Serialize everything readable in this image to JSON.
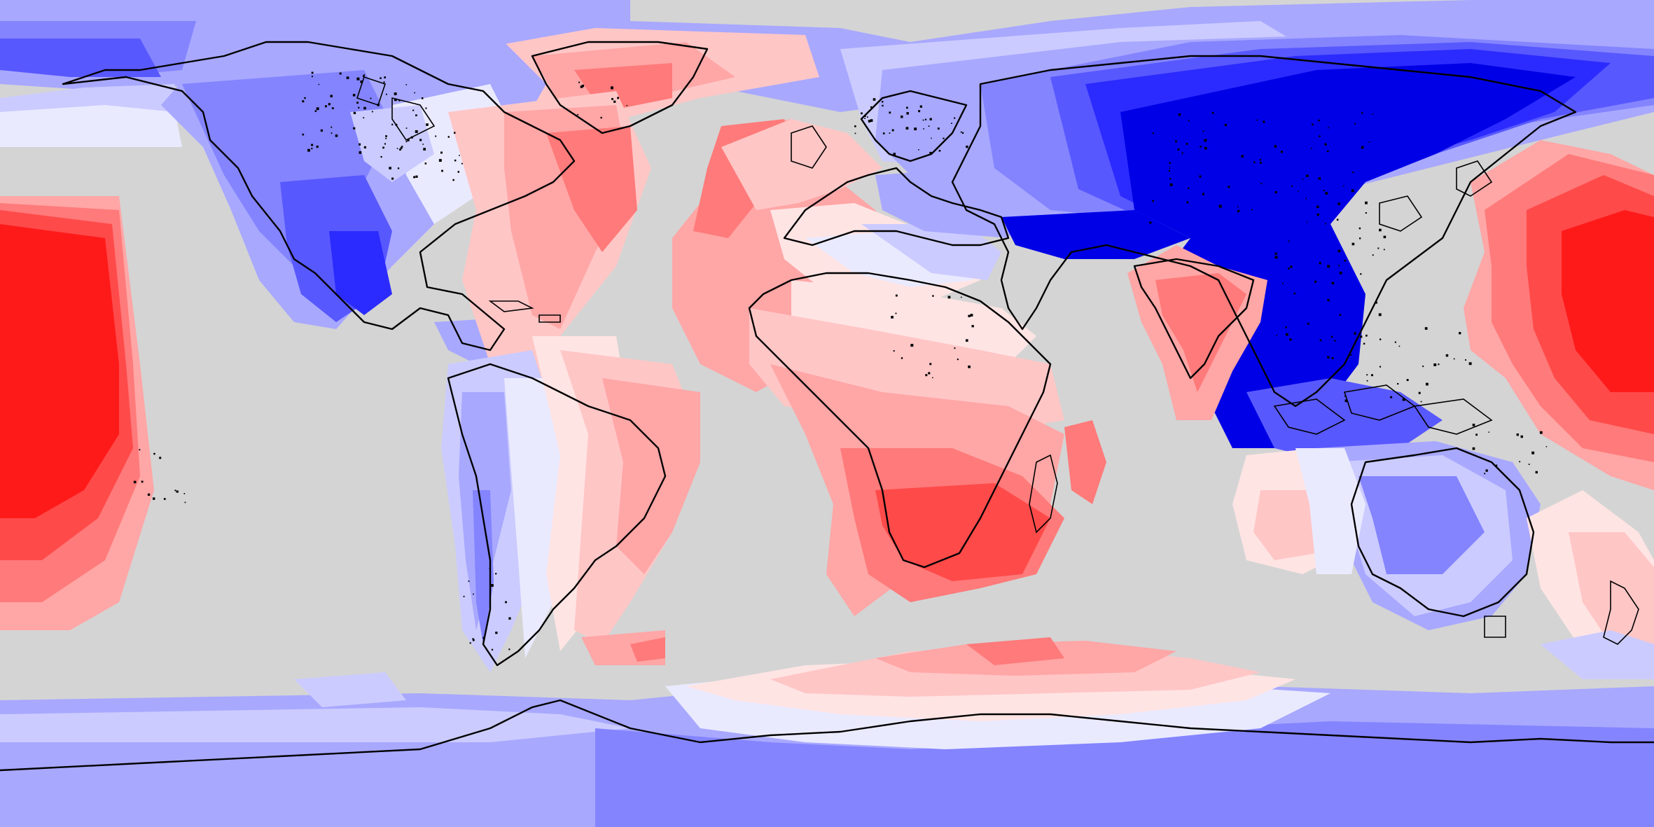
{
  "map": {
    "projection": "equirectangular",
    "view": "global",
    "labels": [],
    "colors": {
      "no_data": "#d4d4d4",
      "coastline": "#000000",
      "diverging_scale": [
        "#0000e6",
        "#2b2bff",
        "#5858ff",
        "#8484ff",
        "#a8a8ff",
        "#cbcbff",
        "#eaeaff",
        "#ffe4e4",
        "#ffc6c6",
        "#ffa6a6",
        "#ff7a7a",
        "#ff4a4a",
        "#ff1a1a"
      ]
    },
    "legend": "none",
    "title": ""
  }
}
